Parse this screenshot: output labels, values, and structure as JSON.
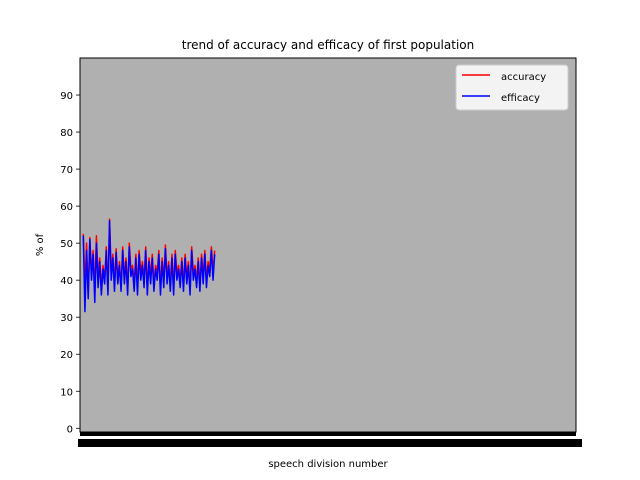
{
  "chart_data": {
    "type": "line",
    "title": "trend of accuracy and efficacy of first population",
    "xlabel": "speech division number",
    "ylabel": "% of",
    "ylim": [
      -1,
      100
    ],
    "xlim": [
      -1,
      150
    ],
    "yticks": [
      0,
      10,
      20,
      30,
      40,
      50,
      60,
      70,
      80,
      90
    ],
    "plot_background": "#b0b0b0",
    "grid": false,
    "legend_position": "top-right",
    "x": [
      0,
      0.5,
      1,
      1.5,
      2,
      2.5,
      3,
      3.5,
      4,
      4.5,
      5,
      5.5,
      6,
      6.5,
      7,
      7.5,
      8,
      8.5,
      9,
      9.5,
      10,
      10.5,
      11,
      11.5,
      12,
      12.5,
      13,
      13.5,
      14,
      14.5,
      15,
      15.5,
      16,
      16.5,
      17,
      17.5,
      18,
      18.5,
      19,
      19.5,
      20,
      20.5,
      21,
      21.5,
      22,
      22.5,
      23,
      23.5,
      24,
      24.5,
      25,
      25.5,
      26,
      26.5,
      27,
      27.5,
      28,
      28.5,
      29,
      29.5,
      30,
      30.5,
      31,
      31.5,
      32,
      32.5,
      33,
      33.5,
      34,
      34.5,
      35,
      35.5,
      36,
      36.5,
      37,
      37.5,
      38,
      38.5,
      39,
      39.5,
      40
    ],
    "series": [
      {
        "name": "accuracy",
        "color": "#ff0000",
        "values": [
          52.5,
          38,
          50,
          36,
          51.5,
          42,
          48,
          37,
          52,
          41,
          46,
          38,
          44,
          40,
          49,
          37,
          56.5,
          42,
          47,
          39,
          48.5,
          40,
          45,
          38,
          49,
          41,
          46,
          37,
          50,
          43,
          44,
          39,
          47,
          38,
          48,
          42,
          45,
          40,
          49,
          38,
          46,
          41,
          47,
          39,
          44,
          42,
          48,
          38,
          46,
          40,
          49.5,
          41,
          45,
          39,
          47,
          38,
          48,
          42,
          44,
          40,
          46,
          39,
          47,
          41,
          45,
          38,
          49,
          42,
          44,
          40,
          46,
          39,
          47,
          41,
          48,
          40,
          45,
          43,
          49,
          42,
          48
        ]
      },
      {
        "name": "efficacy",
        "color": "#0000ff",
        "values": [
          52,
          31.5,
          48,
          35,
          51,
          40,
          47,
          34,
          50,
          38,
          45,
          36,
          43,
          39,
          48,
          36,
          56,
          40,
          46,
          37,
          47.5,
          39,
          44,
          37,
          48,
          39,
          45,
          36,
          49,
          41,
          43,
          37,
          46,
          36,
          47,
          40,
          44,
          38,
          48,
          36,
          45,
          39,
          46,
          37,
          43,
          40,
          47,
          36,
          45,
          38,
          48.5,
          39,
          44,
          37,
          46,
          36,
          47,
          40,
          43,
          38,
          45,
          37,
          46,
          39,
          44,
          36,
          48,
          40,
          43,
          38,
          45,
          37,
          46,
          39,
          47,
          38,
          44,
          41,
          48,
          40,
          47
        ]
      }
    ]
  }
}
